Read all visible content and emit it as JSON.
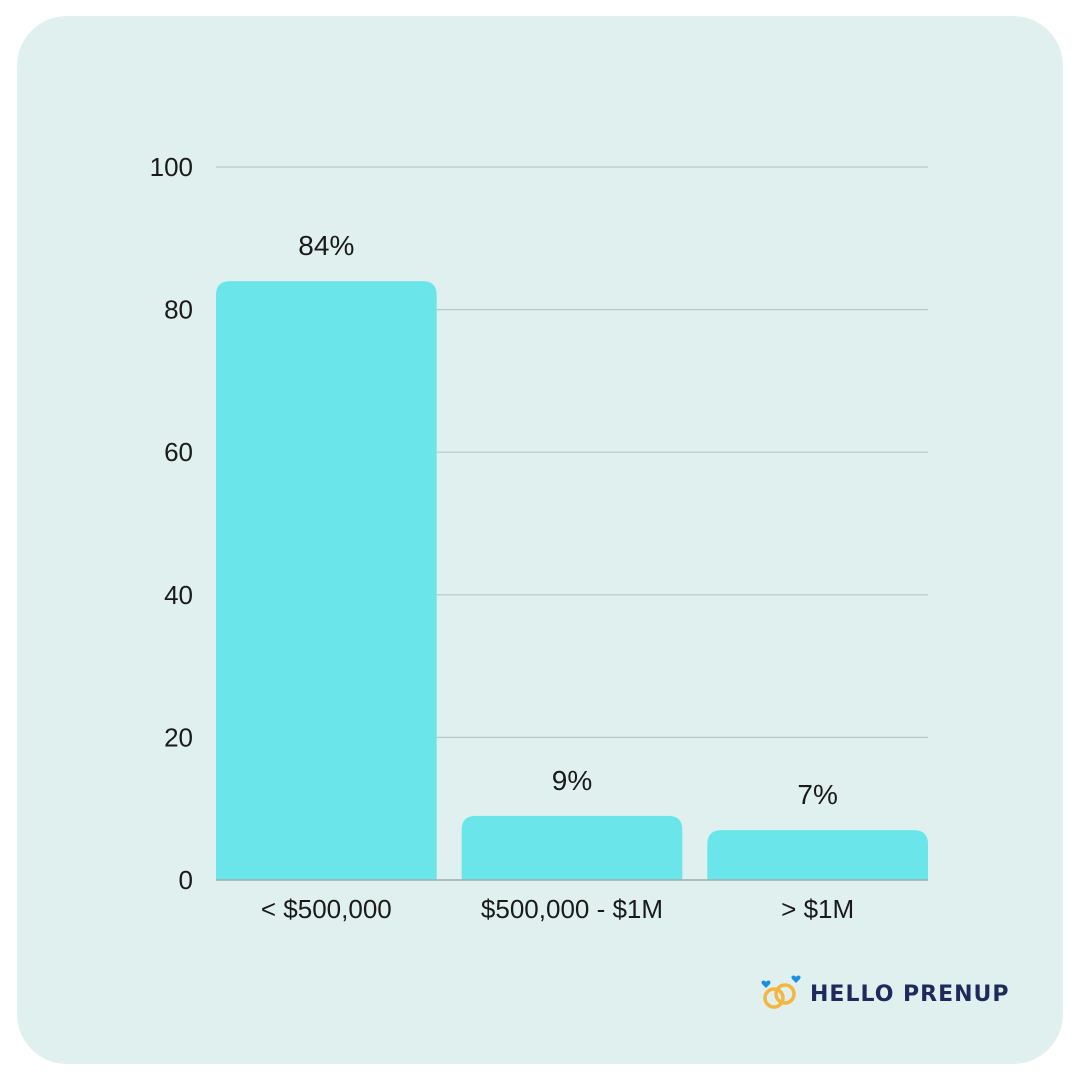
{
  "chart_data": {
    "type": "bar",
    "categories": [
      "< $500,000",
      "$500,000 - $1M",
      "> $1M"
    ],
    "values": [
      84,
      9,
      7
    ],
    "data_labels": [
      "84%",
      "9%",
      "7%"
    ],
    "ylim": [
      0,
      100
    ],
    "yticks": [
      0,
      20,
      40,
      60,
      80,
      100
    ],
    "grid": true,
    "colors": {
      "bar": "#6ae5e9",
      "grid": "#b7c9c9",
      "axis": "#9aaeae"
    }
  },
  "brand": {
    "name": "HELLO PRENUP",
    "text_color": "#1f2a5c",
    "ring_color": "#f6b440",
    "heart_color": "#1e8fe0",
    "icon": "wedding-rings-icon"
  }
}
